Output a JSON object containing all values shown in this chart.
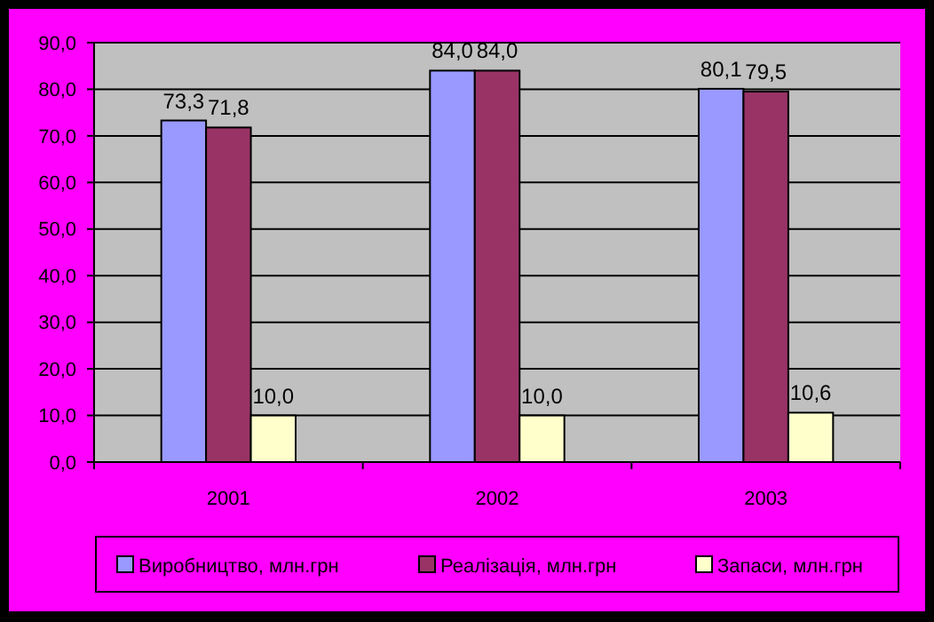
{
  "chart_data": {
    "type": "bar",
    "categories": [
      "2001",
      "2002",
      "2003"
    ],
    "series": [
      {
        "name": "Виробництво, млн.грн",
        "color": "#9999ff",
        "values": [
          73.3,
          84.0,
          80.1
        ],
        "value_labels": [
          "73,3",
          "84,0",
          "80,1"
        ]
      },
      {
        "name": "Реалізація, млн.грн",
        "color": "#993366",
        "values": [
          71.8,
          84.0,
          79.5
        ],
        "value_labels": [
          "71,8",
          "84,0",
          "79,5"
        ]
      },
      {
        "name": "Запаси, млн.грн",
        "color": "#ffffcc",
        "values": [
          10.0,
          10.0,
          10.6
        ],
        "value_labels": [
          "10,0",
          "10,0",
          "10,6"
        ]
      }
    ],
    "ylim": [
      0,
      90
    ],
    "yticks": [
      {
        "value": 0,
        "label": "0,0"
      },
      {
        "value": 10,
        "label": "10,0"
      },
      {
        "value": 20,
        "label": "20,0"
      },
      {
        "value": 30,
        "label": "30,0"
      },
      {
        "value": 40,
        "label": "40,0"
      },
      {
        "value": 50,
        "label": "50,0"
      },
      {
        "value": 60,
        "label": "60,0"
      },
      {
        "value": 70,
        "label": "70,0"
      },
      {
        "value": 80,
        "label": "80,0"
      },
      {
        "value": 90,
        "label": "90,0"
      }
    ],
    "grid": "y",
    "legend": "bottom"
  }
}
